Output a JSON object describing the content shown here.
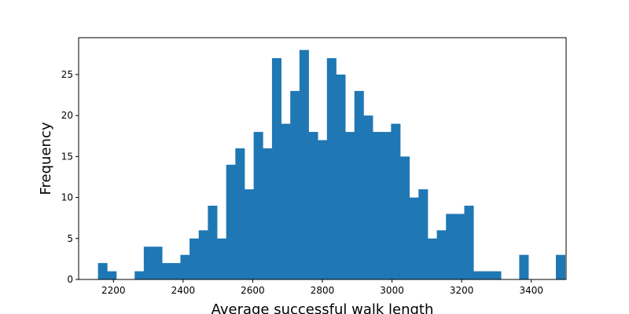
{
  "chart_data": {
    "type": "bar",
    "title": "",
    "xlabel": "Average successful walk length",
    "ylabel": "Frequency",
    "bar_color": "#1f77b4",
    "grid": false,
    "legend": "none",
    "xlim": [
      2100,
      3500
    ],
    "ylim": [
      0,
      29.5
    ],
    "xticks": [
      2200,
      2400,
      2600,
      2800,
      3000,
      3200,
      3400
    ],
    "yticks": [
      0,
      5,
      10,
      15,
      20,
      25
    ],
    "bin_start": 2155.6,
    "bin_width": 26.3,
    "values": [
      2,
      1,
      0,
      0,
      1,
      4,
      4,
      2,
      2,
      3,
      5,
      6,
      9,
      5,
      14,
      16,
      11,
      18,
      16,
      27,
      19,
      23,
      28,
      18,
      17,
      27,
      25,
      18,
      23,
      20,
      18,
      18,
      19,
      15,
      10,
      11,
      5,
      6,
      8,
      8,
      9,
      1,
      1,
      1,
      0,
      0,
      3,
      0,
      0,
      0,
      3
    ]
  }
}
